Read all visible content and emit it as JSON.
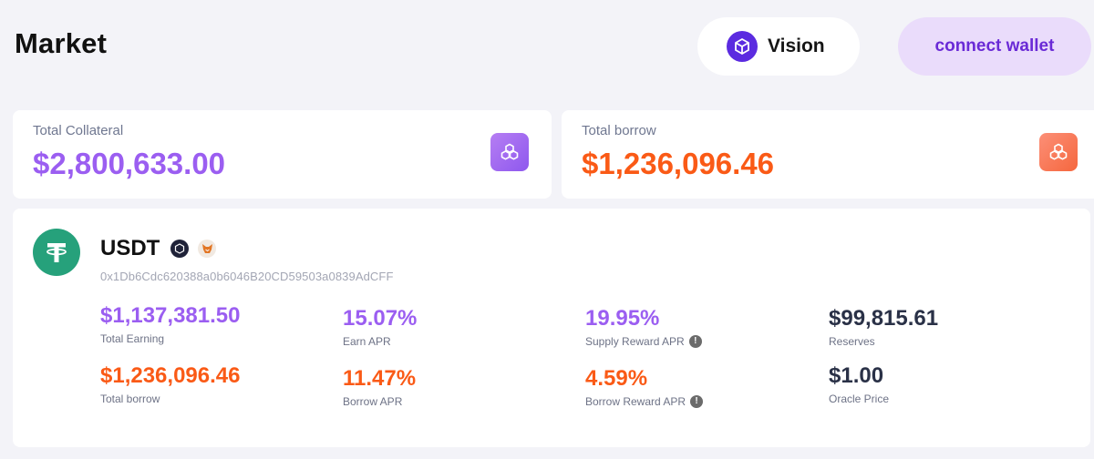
{
  "header": {
    "title": "Market",
    "network_label": "Vision",
    "connect_label": "connect wallet"
  },
  "summary": {
    "collateral": {
      "label": "Total Collateral",
      "value": "$2,800,633.00",
      "icon": "cubes-icon"
    },
    "borrow": {
      "label": "Total borrow",
      "value": "$1,236,096.46",
      "icon": "cubes-icon"
    }
  },
  "asset": {
    "symbol": "USDT",
    "logo_icon": "tether-icon",
    "badges": [
      "vision-network-icon",
      "metamask-fox-icon"
    ],
    "address": "0x1Db6Cdc620388a0b6046B20CD59503a0839AdCFF",
    "metrics": {
      "total_earning": {
        "value": "$1,137,381.50",
        "label": "Total Earning"
      },
      "earn_apr": {
        "value": "15.07%",
        "label": "Earn APR"
      },
      "supply_reward_apr": {
        "value": "19.95%",
        "label": "Supply Reward APR"
      },
      "reserves": {
        "value": "$99,815.61",
        "label": "Reserves"
      },
      "total_borrow": {
        "value": "$1,236,096.46",
        "label": "Total borrow"
      },
      "borrow_apr": {
        "value": "11.47%",
        "label": "Borrow APR"
      },
      "borrow_reward_apr": {
        "value": "4.59%",
        "label": "Borrow Reward APR"
      },
      "oracle_price": {
        "value": "$1.00",
        "label": "Oracle Price"
      }
    },
    "info_glyph": "!"
  },
  "colors": {
    "background": "#f3f3f8",
    "purple_accent": "#9b5ef1",
    "orange_accent": "#fa5a16",
    "dark_value": "#2a3147",
    "connect_bg": "#eadcfb",
    "connect_text": "#6a2ad6",
    "tether_green": "#26a17b"
  }
}
